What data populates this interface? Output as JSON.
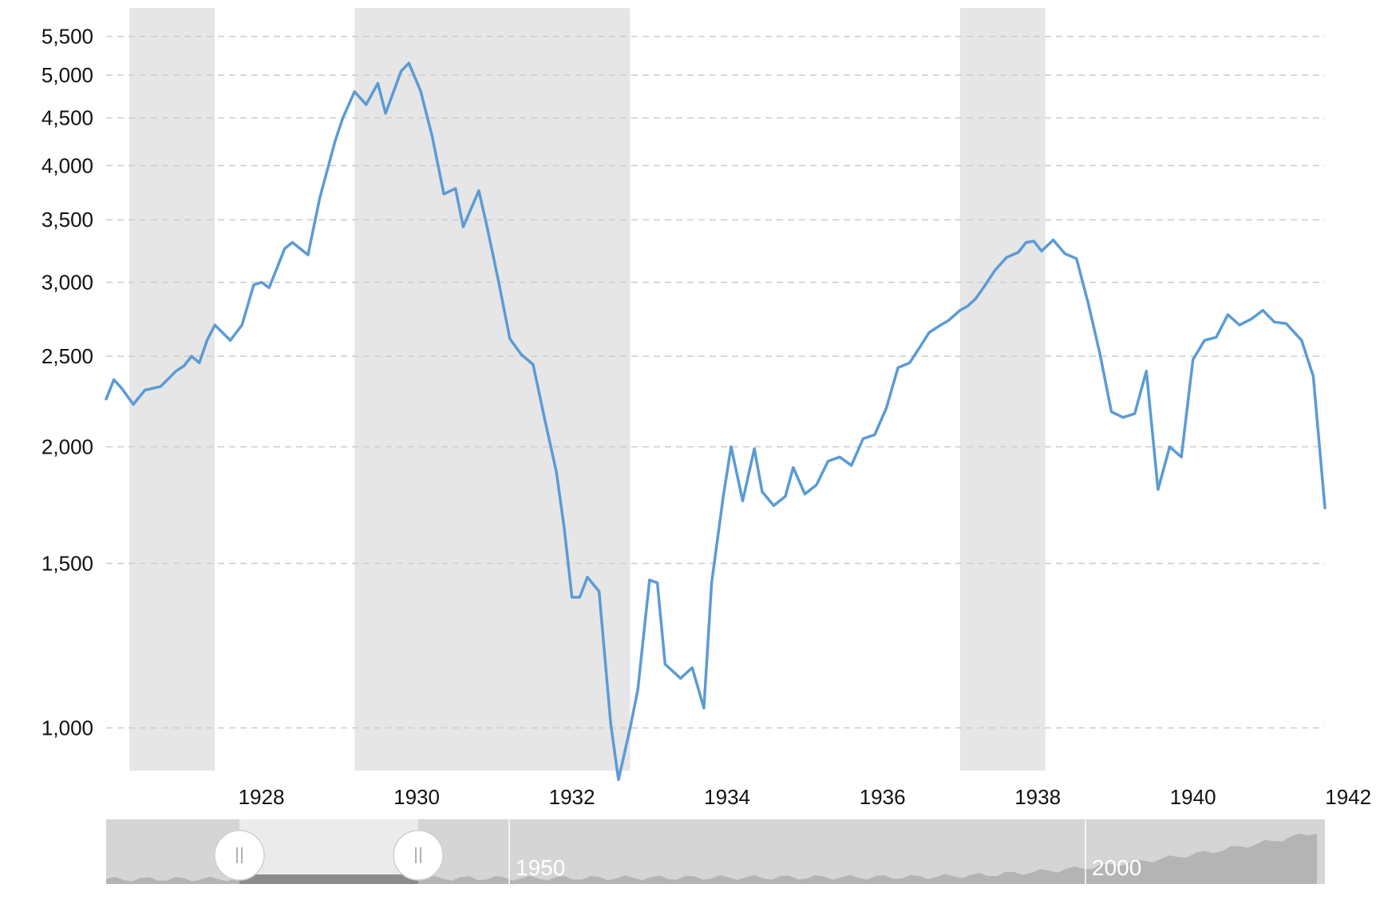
{
  "chart_data": {
    "type": "line",
    "title": "",
    "xlabel": "",
    "ylabel": "",
    "y_scale": "log",
    "ylim": [
      900,
      5900
    ],
    "xlim": [
      1926.0,
      1941.7
    ],
    "grid": "horizontal-dashed",
    "colors": {
      "line": "#5b9bd5",
      "recession": "#e6e6e6",
      "grid": "#cccccc",
      "navigator_bg": "#d5d5d5",
      "navigator_window": "#ebebeb"
    },
    "y_ticks": [
      1000,
      1500,
      2000,
      2500,
      3000,
      3500,
      4000,
      4500,
      5000,
      5500
    ],
    "y_tick_labels": [
      "1,000",
      "1,500",
      "2,000",
      "2,500",
      "3,000",
      "3,500",
      "4,000",
      "4,500",
      "5,000",
      "5,500"
    ],
    "x_ticks": [
      1928,
      1930,
      1932,
      1934,
      1936,
      1938,
      1940,
      1942
    ],
    "x_tick_labels": [
      "1928",
      "1930",
      "1932",
      "1934",
      "1936",
      "1938",
      "1940",
      "1942"
    ],
    "recession_bands": [
      [
        1926.3,
        1927.4
      ],
      [
        1929.2,
        1932.75
      ],
      [
        1937.0,
        1938.1
      ]
    ],
    "series": [
      {
        "x": [
          1926.0,
          1926.1,
          1926.2,
          1926.35,
          1926.5,
          1926.7,
          1926.9,
          1927.0,
          1927.1,
          1927.2,
          1927.3,
          1927.4,
          1927.6,
          1927.75,
          1927.9,
          1928.0,
          1928.1,
          1928.3,
          1928.4,
          1928.6,
          1928.75,
          1928.95,
          1929.05,
          1929.2,
          1929.35,
          1929.5,
          1929.6,
          1929.8,
          1929.9,
          1930.05,
          1930.2,
          1930.35,
          1930.5,
          1930.6,
          1930.8,
          1930.9,
          1931.05,
          1931.2,
          1931.35,
          1931.5,
          1931.65,
          1931.8,
          1931.9,
          1932.0,
          1932.1,
          1932.2,
          1932.35,
          1932.5,
          1932.6,
          1932.75,
          1932.85,
          1933.0,
          1933.1,
          1933.2,
          1933.4,
          1933.55,
          1933.7,
          1933.8,
          1933.95,
          1934.05,
          1934.2,
          1934.35,
          1934.45,
          1934.6,
          1934.75,
          1934.85,
          1935.0,
          1935.15,
          1935.3,
          1935.45,
          1935.6,
          1935.75,
          1935.9,
          1936.05,
          1936.2,
          1936.35,
          1936.5,
          1936.6,
          1936.75,
          1936.85,
          1937.0,
          1937.1,
          1937.2,
          1937.3,
          1937.45,
          1937.6,
          1937.75,
          1937.85,
          1937.95,
          1938.05,
          1938.2,
          1938.35,
          1938.5,
          1938.65,
          1938.8,
          1938.95,
          1939.1,
          1939.25,
          1939.4,
          1939.55,
          1939.7,
          1939.85,
          1940.0,
          1940.15,
          1940.3,
          1940.45,
          1940.6,
          1940.75,
          1940.9,
          1941.05,
          1941.2,
          1941.4,
          1941.55,
          1941.7
        ],
        "y": [
          2250,
          2360,
          2310,
          2220,
          2300,
          2320,
          2410,
          2440,
          2500,
          2460,
          2600,
          2700,
          2600,
          2700,
          2980,
          3000,
          2960,
          3260,
          3310,
          3210,
          3690,
          4250,
          4500,
          4800,
          4650,
          4900,
          4550,
          5050,
          5150,
          4810,
          4300,
          3730,
          3780,
          3440,
          3760,
          3460,
          3020,
          2610,
          2510,
          2450,
          2140,
          1880,
          1640,
          1380,
          1380,
          1450,
          1400,
          1010,
          880,
          1000,
          1100,
          1440,
          1430,
          1170,
          1130,
          1160,
          1050,
          1430,
          1770,
          2000,
          1750,
          1990,
          1790,
          1730,
          1770,
          1900,
          1780,
          1820,
          1930,
          1950,
          1910,
          2040,
          2060,
          2200,
          2430,
          2460,
          2570,
          2650,
          2700,
          2730,
          2800,
          2830,
          2880,
          2960,
          3090,
          3190,
          3230,
          3310,
          3320,
          3240,
          3330,
          3220,
          3180,
          2850,
          2520,
          2180,
          2150,
          2170,
          2410,
          1800,
          2000,
          1950,
          2480,
          2600,
          2620,
          2770,
          2700,
          2740,
          2800,
          2720,
          2710,
          2600,
          2380,
          1720
        ]
      }
    ],
    "navigator": {
      "labels": [
        "1950",
        "2000"
      ]
    }
  }
}
